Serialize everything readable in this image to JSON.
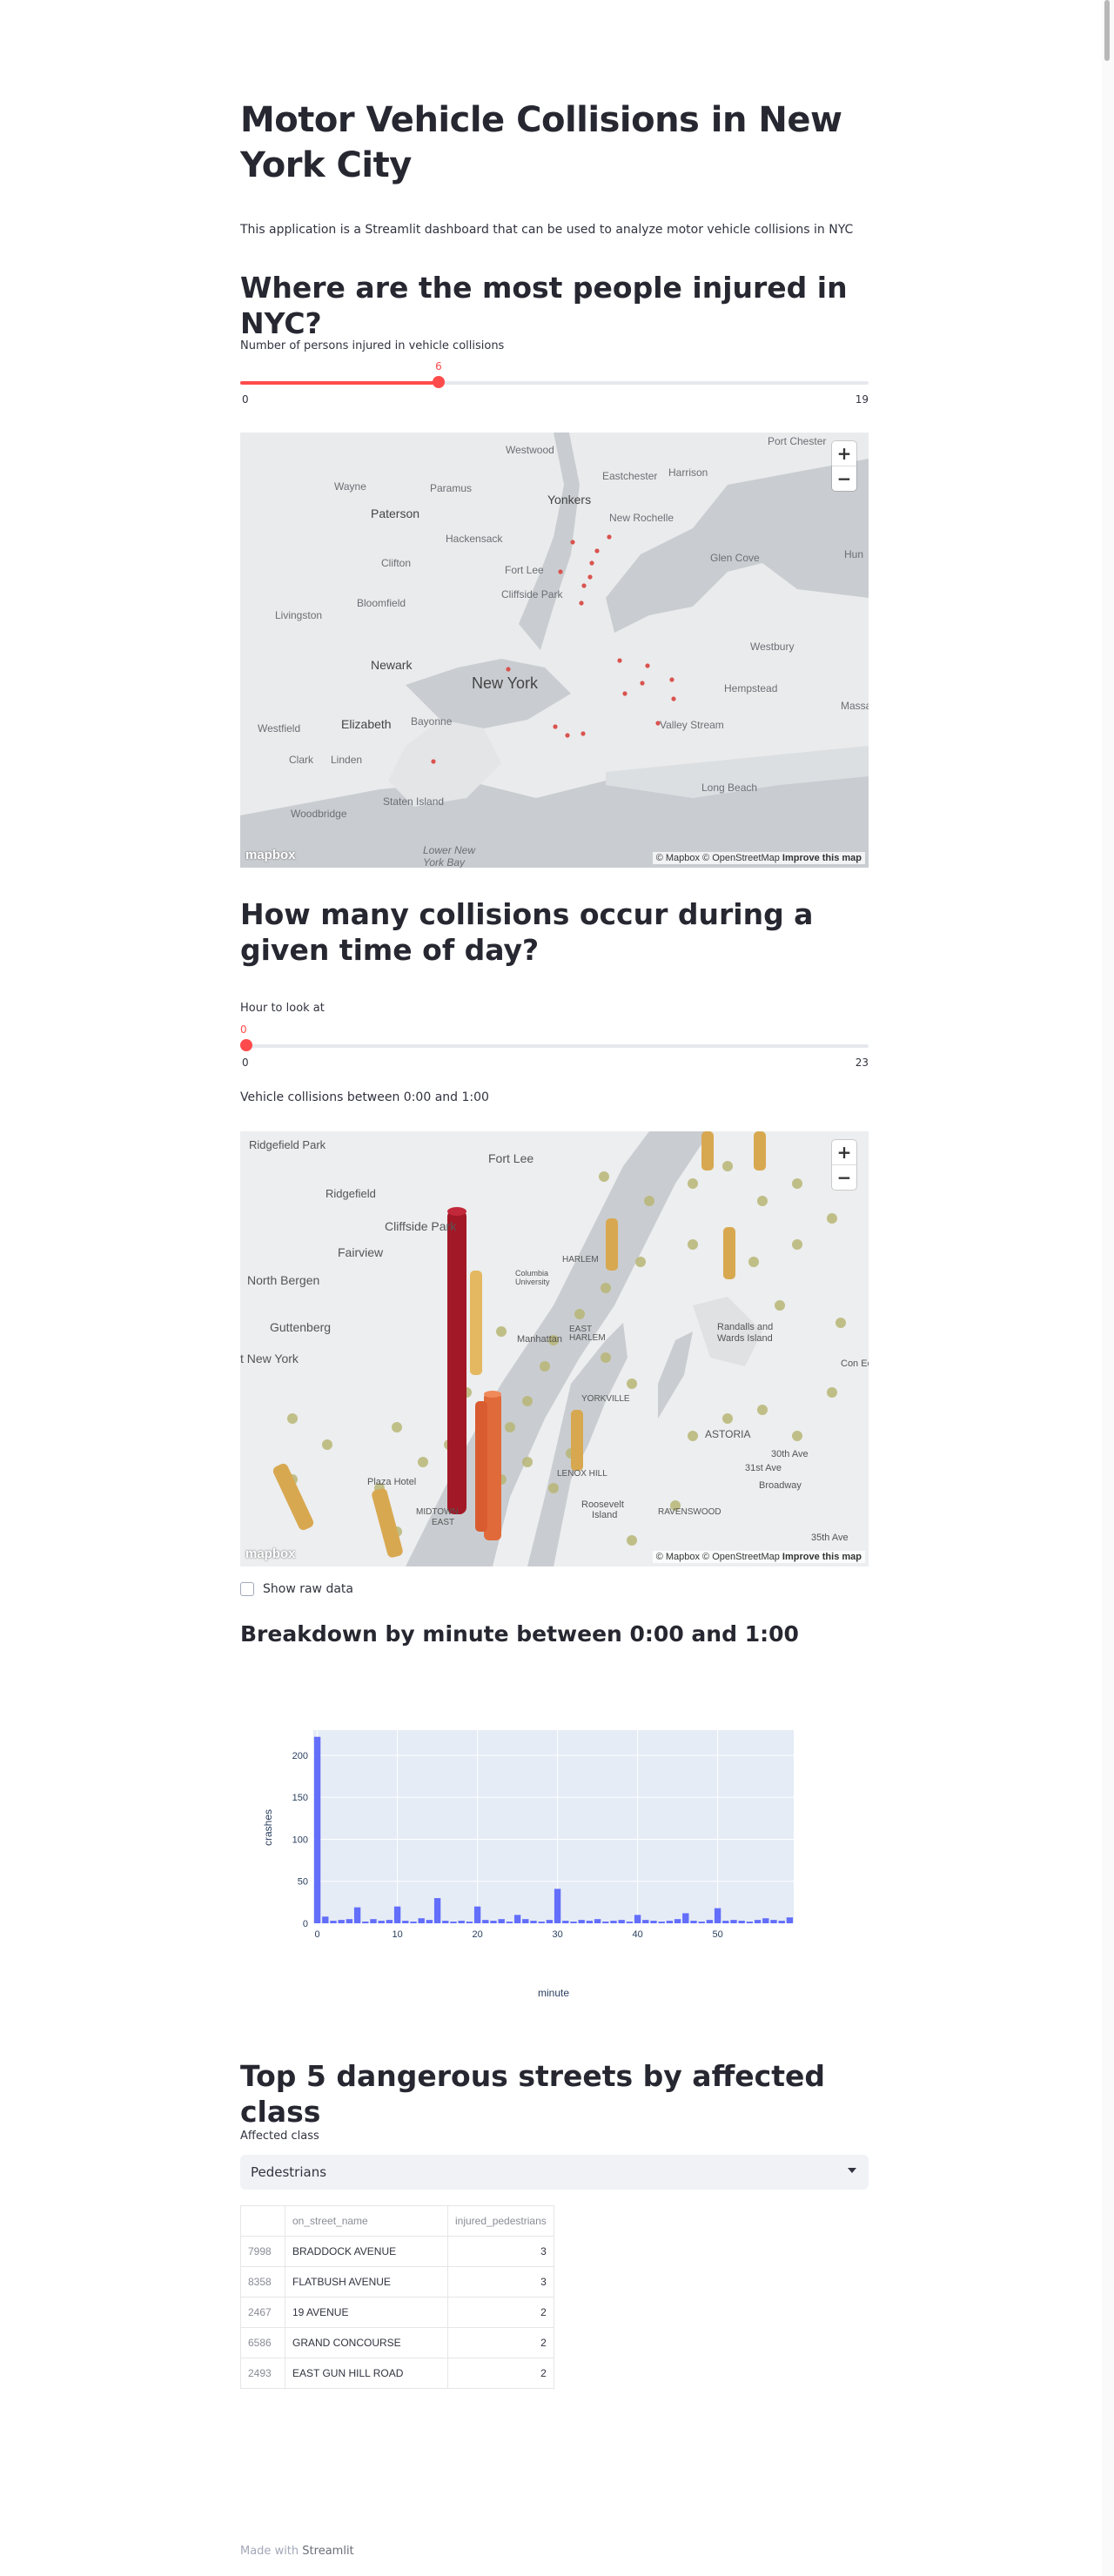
{
  "title": "Motor Vehicle Collisions in New York City",
  "description": "This application is a Streamlit dashboard that can be used to analyze motor vehicle collisions in NYC",
  "injured_section": {
    "heading": "Where are the most people injured in NYC?",
    "slider_label": "Number of persons injured in vehicle collisions",
    "value": "6",
    "min": "0",
    "max": "19",
    "value_fraction": 0.316
  },
  "map1": {
    "zoom_in": "+",
    "zoom_out": "−",
    "place_labels": [
      "Port Chester",
      "Westwood",
      "Eastchester",
      "Harrison",
      "Wayne",
      "Paramus",
      "Yonkers",
      "New Rochelle",
      "Paterson",
      "Hackensack",
      "Glen Cove",
      "Clifton",
      "Fort Lee",
      "Hun",
      "Livingston",
      "Bloomfield",
      "Cliffside Park",
      "Newark",
      "New York",
      "Westbury",
      "Hempstead",
      "Massap",
      "Westfield",
      "Elizabeth",
      "Bayonne",
      "Valley Stream",
      "Clark",
      "Linden",
      "Long Beach",
      "Staten Island",
      "Woodbridge",
      "Lower New York Bay"
    ],
    "attribution": "© Mapbox © OpenStreetMap",
    "improve": "Improve this map",
    "logo": "mapbox"
  },
  "time_section": {
    "heading": "How many collisions occur during a given time of day?",
    "slider_label": "Hour to look at",
    "value": "0",
    "min": "0",
    "max": "23",
    "value_fraction": 0,
    "subtitle": "Vehicle collisions between 0:00 and 1:00"
  },
  "map2": {
    "zoom_in": "+",
    "zoom_out": "−",
    "place_labels": [
      "Ridgefield Park",
      "Fort Lee",
      "Ridgefield",
      "Cliffside Park",
      "Fairview",
      "North Bergen",
      "Guttenberg",
      "West New York",
      "Manhattan",
      "Columbia University",
      "Harlem",
      "East Harlem",
      "Randalls and Wards Island",
      "Yorkville",
      "Astoria",
      "Lenox Hill",
      "Roosevelt Island",
      "Ravenswood",
      "Midtown East",
      "Plaza Hotel",
      "Con Edi",
      "31st Ave",
      "Broadway",
      "35th Ave",
      "30th Ave"
    ],
    "attribution": "© Mapbox © OpenStreetMap",
    "improve": "Improve this map",
    "logo": "mapbox"
  },
  "show_raw_label": "Show raw data",
  "minute_section": {
    "heading": "Breakdown by minute between 0:00 and 1:00"
  },
  "chart_data": {
    "type": "bar",
    "xlabel": "minute",
    "ylabel": "crashes",
    "xlim": [
      -0.5,
      59.5
    ],
    "ylim": [
      0,
      230
    ],
    "xticks": [
      0,
      10,
      20,
      30,
      40,
      50
    ],
    "yticks": [
      0,
      50,
      100,
      150,
      200
    ],
    "color": "#636efa",
    "x": [
      0,
      1,
      2,
      3,
      4,
      5,
      6,
      7,
      8,
      9,
      10,
      11,
      12,
      13,
      14,
      15,
      16,
      17,
      18,
      19,
      20,
      21,
      22,
      23,
      24,
      25,
      26,
      27,
      28,
      29,
      30,
      31,
      32,
      33,
      34,
      35,
      36,
      37,
      38,
      39,
      40,
      41,
      42,
      43,
      44,
      45,
      46,
      47,
      48,
      49,
      50,
      51,
      52,
      53,
      54,
      55,
      56,
      57,
      58,
      59
    ],
    "values": [
      222,
      8,
      3,
      4,
      5,
      19,
      2,
      5,
      3,
      4,
      20,
      3,
      2,
      6,
      4,
      30,
      3,
      2,
      3,
      2,
      20,
      4,
      3,
      5,
      2,
      10,
      5,
      3,
      2,
      4,
      41,
      3,
      2,
      4,
      3,
      5,
      2,
      3,
      4,
      2,
      10,
      4,
      3,
      2,
      3,
      5,
      12,
      3,
      2,
      4,
      18,
      3,
      4,
      3,
      2,
      4,
      6,
      4,
      3,
      7
    ]
  },
  "streets_section": {
    "heading": "Top 5 dangerous streets by affected class",
    "select_label": "Affected class",
    "select_value": "Pedestrians",
    "columns": [
      "",
      "on_street_name",
      "injured_pedestrians"
    ],
    "rows": [
      [
        "7998",
        "BRADDOCK AVENUE",
        "3"
      ],
      [
        "8358",
        "FLATBUSH AVENUE",
        "3"
      ],
      [
        "2467",
        "19 AVENUE",
        "2"
      ],
      [
        "6586",
        "GRAND CONCOURSE",
        "2"
      ],
      [
        "2493",
        "EAST GUN HILL ROAD",
        "2"
      ]
    ]
  },
  "footer": {
    "made_with": "Made with",
    "brand": "Streamlit"
  }
}
